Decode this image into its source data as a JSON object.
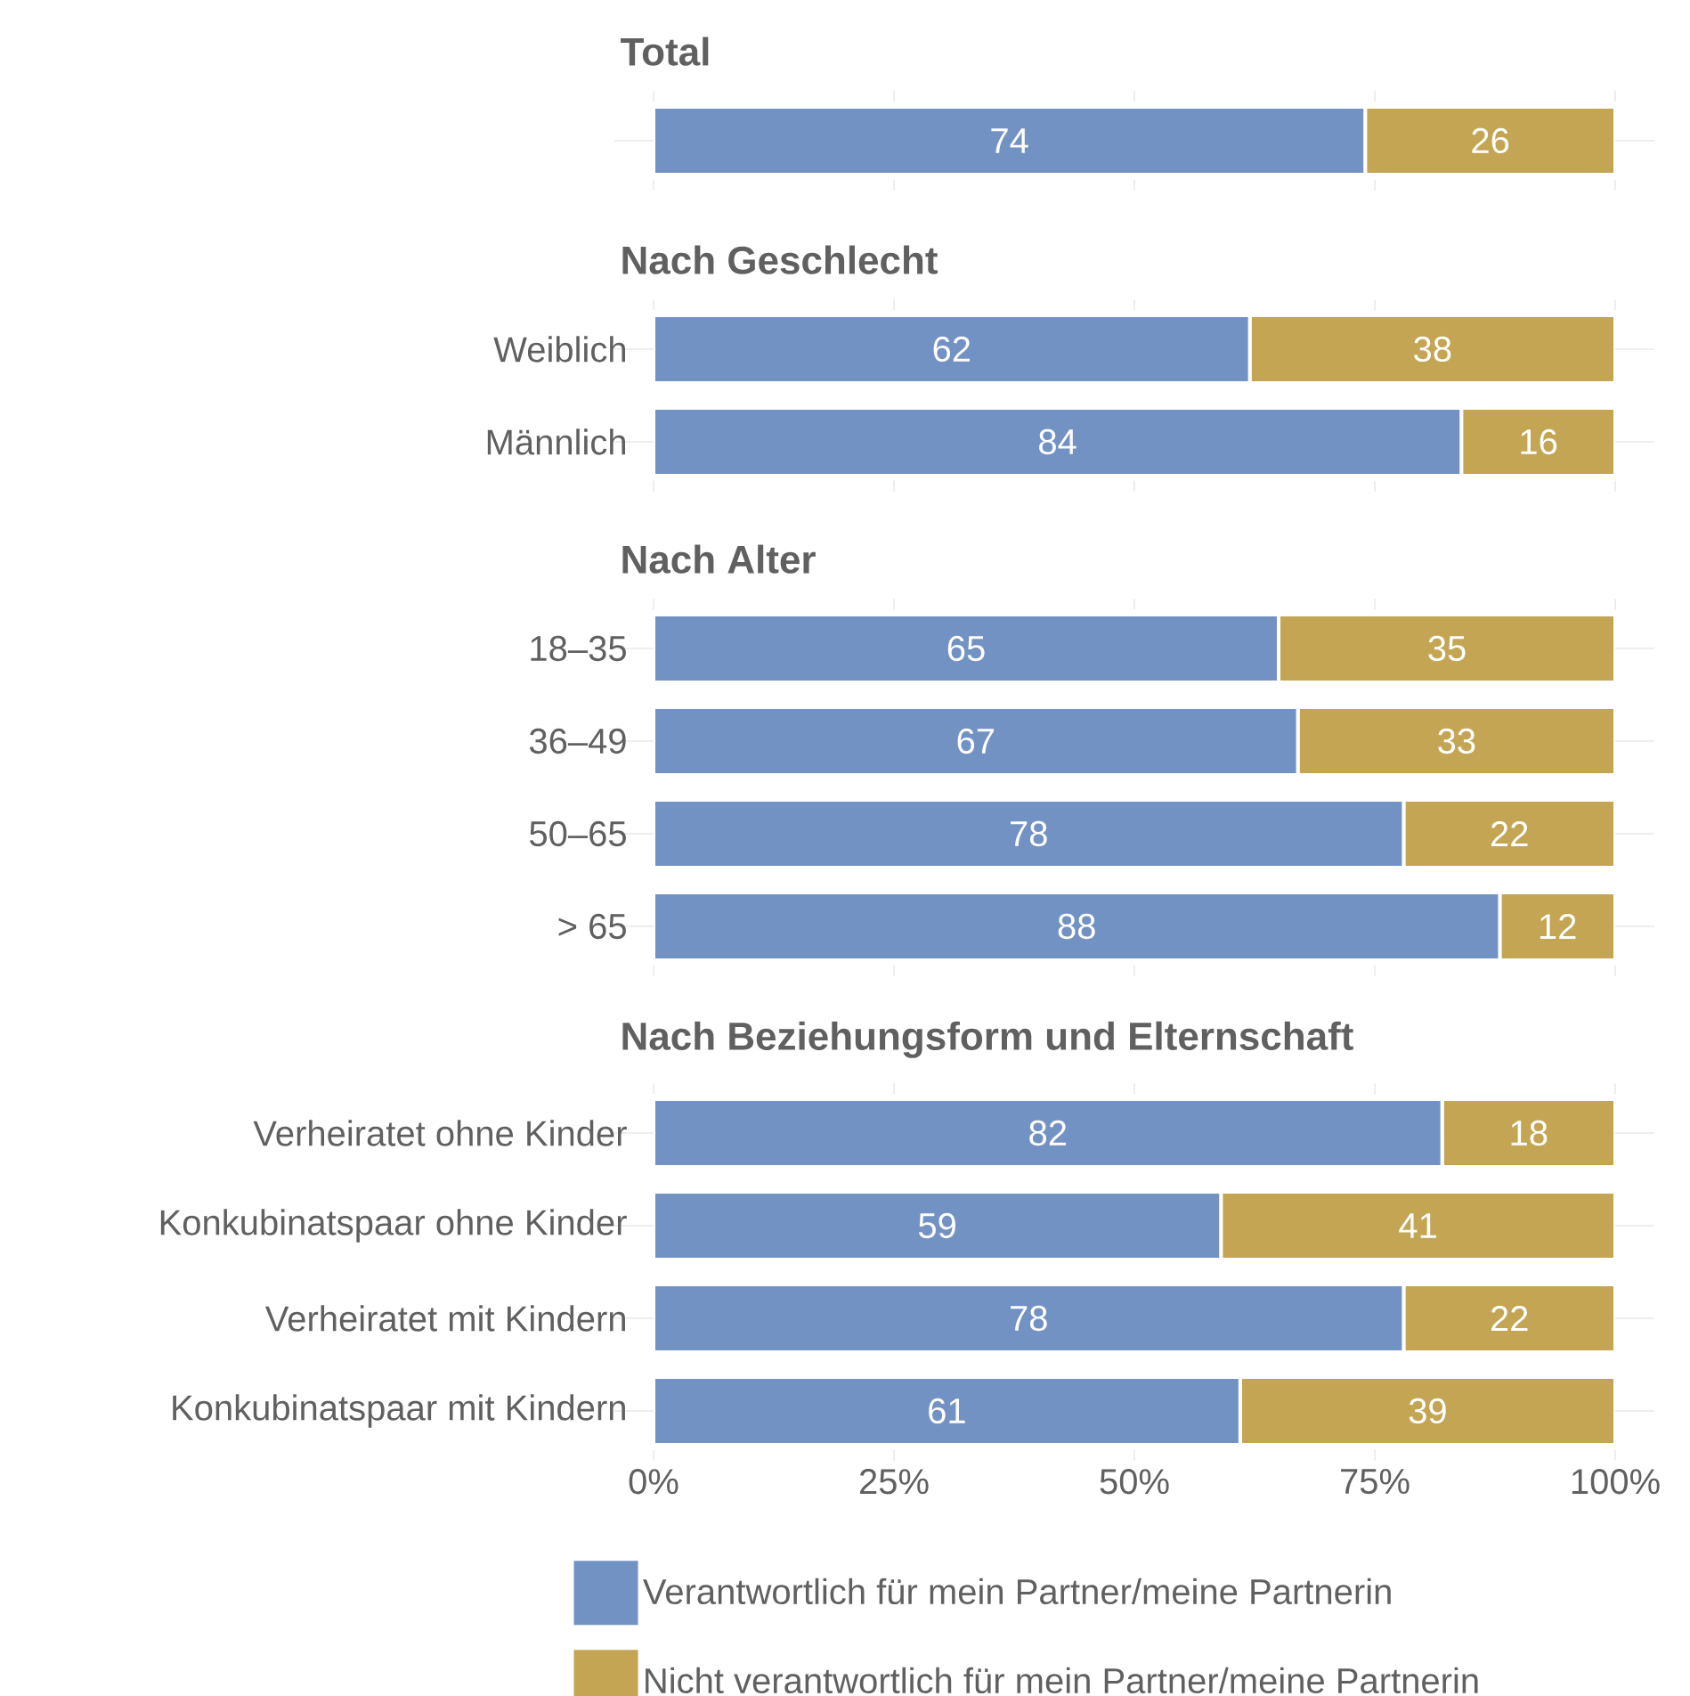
{
  "chart_data": [
    {
      "type": "bar",
      "orientation": "horizontal",
      "stacked": true,
      "title": "Total",
      "categories": [
        null
      ],
      "series": [
        {
          "color": "#7292c4",
          "values": [
            74
          ]
        },
        {
          "color": "#c4a554",
          "values": [
            26
          ]
        }
      ],
      "data_labels": true,
      "xlim": [
        0,
        100
      ],
      "xticks": [
        0,
        25,
        50,
        75,
        100
      ],
      "tick_labels": "y"
    },
    {
      "type": "bar",
      "orientation": "horizontal",
      "stacked": true,
      "title": "Nach Geschlecht",
      "categories": [
        "Weiblich",
        "Männlich"
      ],
      "series": [
        {
          "color": "#7292c4",
          "values": [
            62,
            84
          ]
        },
        {
          "color": "#c4a554",
          "values": [
            38,
            16
          ]
        }
      ],
      "data_labels": true,
      "xlim": [
        0,
        100
      ],
      "xticks": [
        0,
        25,
        50,
        75,
        100
      ],
      "tick_labels": "y"
    },
    {
      "type": "bar",
      "orientation": "horizontal",
      "stacked": true,
      "title": "Nach Alter",
      "categories": [
        "18–35",
        "36–49",
        "50–65",
        "> 65"
      ],
      "series": [
        {
          "color": "#7292c4",
          "values": [
            65,
            67,
            78,
            88
          ]
        },
        {
          "color": "#c4a554",
          "values": [
            35,
            33,
            22,
            12
          ]
        }
      ],
      "data_labels": true,
      "xlim": [
        0,
        100
      ],
      "xticks": [
        0,
        25,
        50,
        75,
        100
      ],
      "tick_labels": "y"
    },
    {
      "type": "bar",
      "orientation": "horizontal",
      "stacked": true,
      "title": "Nach Beziehungsform und Elternschaft",
      "categories": [
        "Verheiratet ohne Kinder",
        "Konkubinatspaar ohne Kinder",
        "Verheiratet mit Kindern",
        "Konkubinatspaar mit Kindern"
      ],
      "series": [
        {
          "name": "Verantwortlich für mein Partner/meine Partnerin",
          "color": "#7292c4",
          "values": [
            82,
            59,
            78,
            61
          ]
        },
        {
          "name": "Nicht verantwortlich für mein Partner/meine Partnerin",
          "color": "#c4a554",
          "values": [
            18,
            41,
            22,
            39
          ]
        }
      ],
      "data_labels": true,
      "xlim": [
        0,
        100
      ],
      "xticks": [
        {
          "value": 0,
          "label": "0%"
        },
        {
          "value": 25,
          "label": "25%"
        },
        {
          "value": 50,
          "label": "50%"
        },
        {
          "value": 75,
          "label": "75%"
        },
        {
          "value": 100,
          "label": "100%"
        }
      ],
      "legend": "bottom left"
    }
  ]
}
